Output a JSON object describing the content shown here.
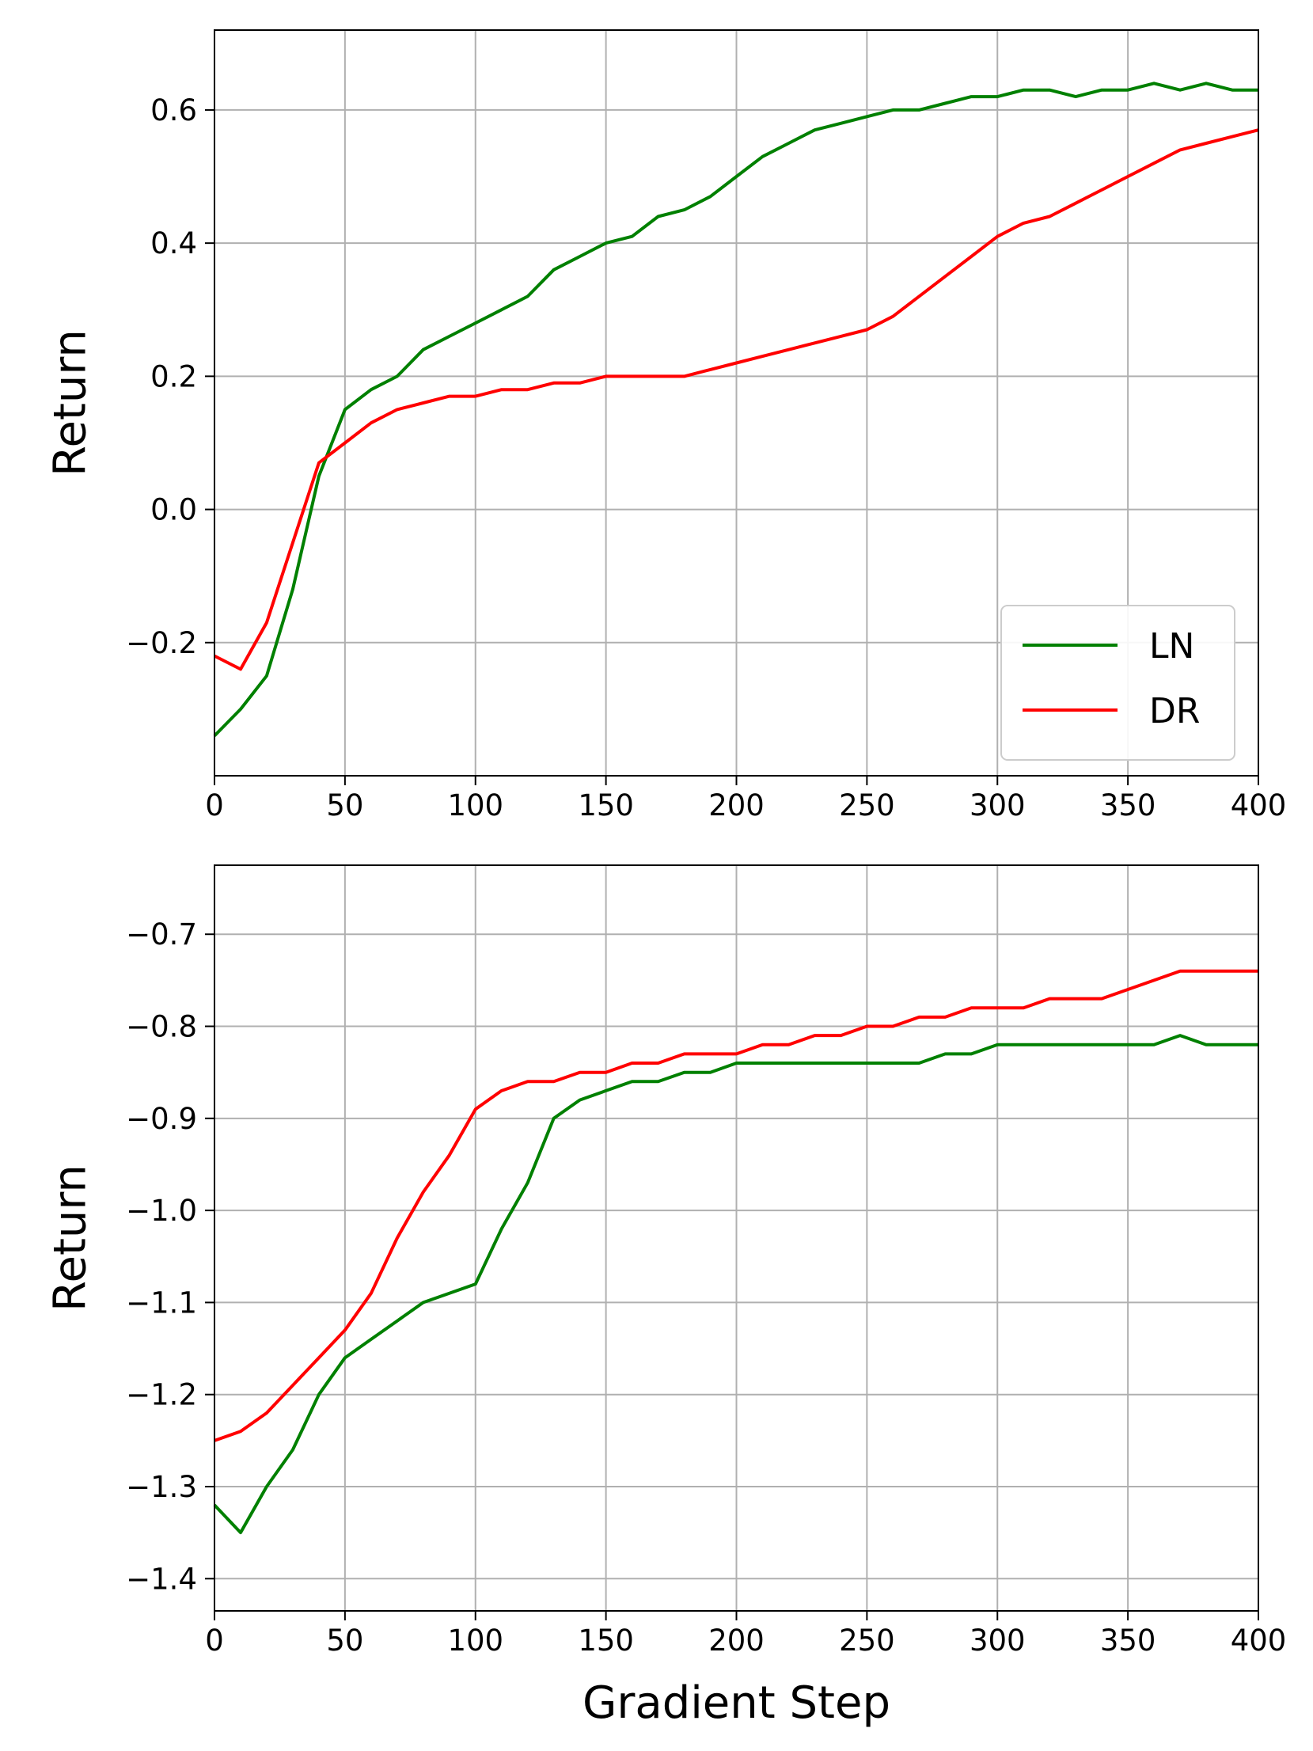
{
  "figure": {
    "xlabel": "Gradient Step"
  },
  "chart_data": [
    {
      "type": "line",
      "ylabel": "Return",
      "xlim": [
        0,
        400
      ],
      "ylim": [
        -0.4,
        0.72
      ],
      "x_ticks": [
        0,
        50,
        100,
        150,
        200,
        250,
        300,
        350,
        400
      ],
      "y_ticks": [
        -0.2,
        0.0,
        0.2,
        0.4,
        0.6
      ],
      "x_tick_labels": [
        "0",
        "50",
        "100",
        "150",
        "200",
        "250",
        "300",
        "350",
        "400"
      ],
      "y_tick_labels": [
        "−0.2",
        "0.0",
        "0.2",
        "0.4",
        "0.6"
      ],
      "grid": true,
      "legend_position": "lower right",
      "legend": [
        "LN",
        "DR"
      ],
      "series": [
        {
          "name": "LN",
          "color": "#008000",
          "x": [
            0,
            10,
            20,
            30,
            40,
            50,
            60,
            70,
            80,
            90,
            100,
            110,
            120,
            130,
            140,
            150,
            160,
            170,
            180,
            190,
            200,
            210,
            220,
            230,
            240,
            250,
            260,
            270,
            280,
            290,
            300,
            310,
            320,
            330,
            340,
            350,
            360,
            370,
            380,
            390,
            400
          ],
          "y": [
            -0.34,
            -0.3,
            -0.25,
            -0.12,
            0.05,
            0.15,
            0.18,
            0.2,
            0.24,
            0.26,
            0.28,
            0.3,
            0.32,
            0.36,
            0.38,
            0.4,
            0.41,
            0.44,
            0.45,
            0.47,
            0.5,
            0.53,
            0.55,
            0.57,
            0.58,
            0.59,
            0.6,
            0.6,
            0.61,
            0.62,
            0.62,
            0.63,
            0.63,
            0.62,
            0.63,
            0.63,
            0.64,
            0.63,
            0.64,
            0.63,
            0.63
          ]
        },
        {
          "name": "DR",
          "color": "#ff0000",
          "x": [
            0,
            10,
            20,
            30,
            40,
            50,
            60,
            70,
            80,
            90,
            100,
            110,
            120,
            130,
            140,
            150,
            160,
            170,
            180,
            190,
            200,
            210,
            220,
            230,
            240,
            250,
            260,
            270,
            280,
            290,
            300,
            310,
            320,
            330,
            340,
            350,
            360,
            370,
            380,
            390,
            400
          ],
          "y": [
            -0.22,
            -0.24,
            -0.17,
            -0.05,
            0.07,
            0.1,
            0.13,
            0.15,
            0.16,
            0.17,
            0.17,
            0.18,
            0.18,
            0.19,
            0.19,
            0.2,
            0.2,
            0.2,
            0.2,
            0.21,
            0.22,
            0.23,
            0.24,
            0.25,
            0.26,
            0.27,
            0.29,
            0.32,
            0.35,
            0.38,
            0.41,
            0.43,
            0.44,
            0.46,
            0.48,
            0.5,
            0.52,
            0.54,
            0.55,
            0.56,
            0.57
          ]
        }
      ]
    },
    {
      "type": "line",
      "ylabel": "Return",
      "xlabel": "Gradient Step",
      "xlim": [
        0,
        400
      ],
      "ylim": [
        -1.435,
        -0.625
      ],
      "x_ticks": [
        0,
        50,
        100,
        150,
        200,
        250,
        300,
        350,
        400
      ],
      "y_ticks": [
        -1.4,
        -1.3,
        -1.2,
        -1.1,
        -1.0,
        -0.9,
        -0.8,
        -0.7
      ],
      "x_tick_labels": [
        "0",
        "50",
        "100",
        "150",
        "200",
        "250",
        "300",
        "350",
        "400"
      ],
      "y_tick_labels": [
        "−1.4",
        "−1.3",
        "−1.2",
        "−1.1",
        "−1.0",
        "−0.9",
        "−0.8",
        "−0.7"
      ],
      "grid": true,
      "series": [
        {
          "name": "LN",
          "color": "#008000",
          "x": [
            0,
            10,
            20,
            30,
            40,
            50,
            60,
            70,
            80,
            90,
            100,
            110,
            120,
            130,
            140,
            150,
            160,
            170,
            180,
            190,
            200,
            210,
            220,
            230,
            240,
            250,
            260,
            270,
            280,
            290,
            300,
            310,
            320,
            330,
            340,
            350,
            360,
            370,
            380,
            390,
            400
          ],
          "y": [
            -1.32,
            -1.35,
            -1.3,
            -1.26,
            -1.2,
            -1.16,
            -1.14,
            -1.12,
            -1.1,
            -1.09,
            -1.08,
            -1.02,
            -0.97,
            -0.9,
            -0.88,
            -0.87,
            -0.86,
            -0.86,
            -0.85,
            -0.85,
            -0.84,
            -0.84,
            -0.84,
            -0.84,
            -0.84,
            -0.84,
            -0.84,
            -0.84,
            -0.83,
            -0.83,
            -0.82,
            -0.82,
            -0.82,
            -0.82,
            -0.82,
            -0.82,
            -0.82,
            -0.81,
            -0.82,
            -0.82,
            -0.82
          ]
        },
        {
          "name": "DR",
          "color": "#ff0000",
          "x": [
            0,
            10,
            20,
            30,
            40,
            50,
            60,
            70,
            80,
            90,
            100,
            110,
            120,
            130,
            140,
            150,
            160,
            170,
            180,
            190,
            200,
            210,
            220,
            230,
            240,
            250,
            260,
            270,
            280,
            290,
            300,
            310,
            320,
            330,
            340,
            350,
            360,
            370,
            380,
            390,
            400
          ],
          "y": [
            -1.25,
            -1.24,
            -1.22,
            -1.19,
            -1.16,
            -1.13,
            -1.09,
            -1.03,
            -0.98,
            -0.94,
            -0.89,
            -0.87,
            -0.86,
            -0.86,
            -0.85,
            -0.85,
            -0.84,
            -0.84,
            -0.83,
            -0.83,
            -0.83,
            -0.82,
            -0.82,
            -0.81,
            -0.81,
            -0.8,
            -0.8,
            -0.79,
            -0.79,
            -0.78,
            -0.78,
            -0.78,
            -0.77,
            -0.77,
            -0.77,
            -0.76,
            -0.75,
            -0.74,
            -0.74,
            -0.74,
            -0.74
          ]
        }
      ]
    }
  ]
}
